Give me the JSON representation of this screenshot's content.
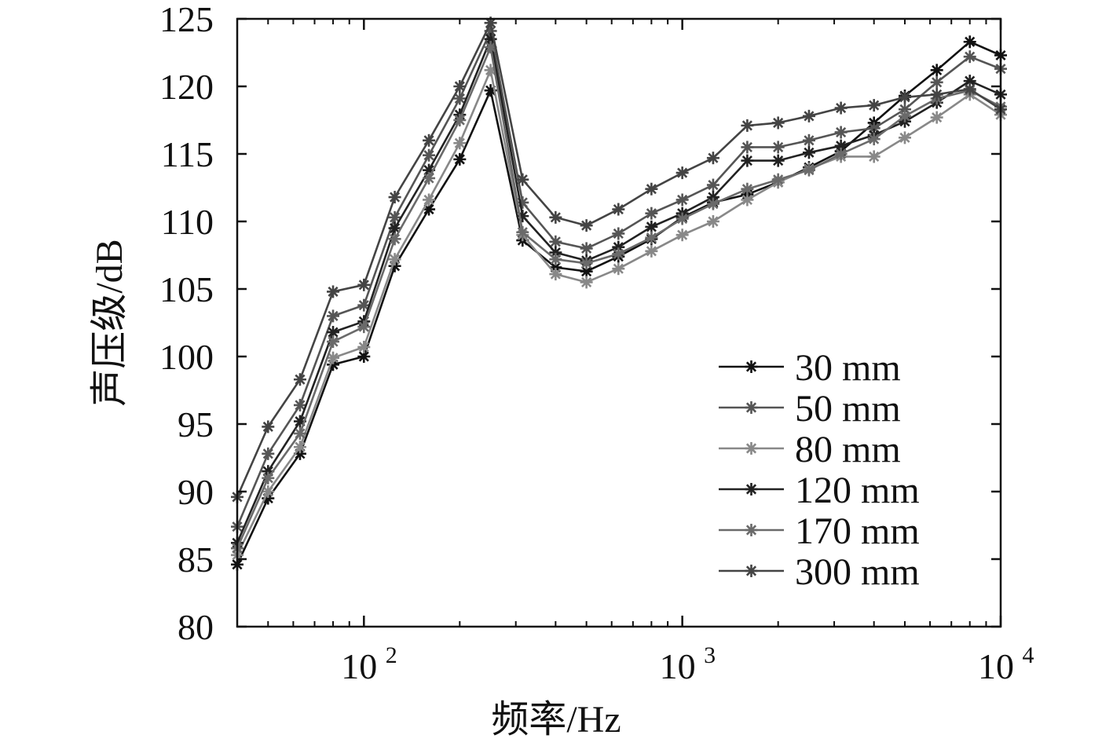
{
  "chart_data": {
    "type": "line",
    "title": "",
    "xlabel": "频率/Hz",
    "ylabel": "声压级/dB",
    "xscale": "log",
    "xlim": [
      40,
      10000
    ],
    "ylim": [
      80,
      125
    ],
    "x_ticks": [
      {
        "value": 100,
        "base": "10",
        "exp": "2"
      },
      {
        "value": 1000,
        "base": "10",
        "exp": "3"
      },
      {
        "value": 10000,
        "base": "10",
        "exp": "4"
      }
    ],
    "y_ticks": [
      80,
      85,
      90,
      95,
      100,
      105,
      110,
      115,
      120,
      125
    ],
    "legend_position": "bottom-right",
    "marker": "asterisk",
    "grid": false,
    "x": [
      40,
      50,
      63,
      80,
      100,
      125,
      160,
      200,
      250,
      315,
      400,
      500,
      630,
      800,
      1000,
      1250,
      1600,
      2000,
      2500,
      3150,
      4000,
      5000,
      6300,
      8000,
      10000
    ],
    "series": [
      {
        "name": "30 mm",
        "color": "#111111",
        "values": [
          84.6,
          89.5,
          92.8,
          99.4,
          100.0,
          106.7,
          110.9,
          114.6,
          119.7,
          108.6,
          106.6,
          106.3,
          107.4,
          108.7,
          110.3,
          111.4,
          112.0,
          112.9,
          114.0,
          115.2,
          117.3,
          119.3,
          121.2,
          123.3,
          122.3
        ]
      },
      {
        "name": "50 mm",
        "color": "#555555",
        "values": [
          87.4,
          92.8,
          96.4,
          103.0,
          103.8,
          110.3,
          114.9,
          119.1,
          124.1,
          111.4,
          108.5,
          108.0,
          109.1,
          110.6,
          111.6,
          112.7,
          115.5,
          115.5,
          116.0,
          116.6,
          116.9,
          118.3,
          120.3,
          122.2,
          121.3
        ]
      },
      {
        "name": "80 mm",
        "color": "#888888",
        "values": [
          85.3,
          90.0,
          93.3,
          99.9,
          100.7,
          107.2,
          111.6,
          115.8,
          121.2,
          109.0,
          106.1,
          105.5,
          106.5,
          107.8,
          109.0,
          110.0,
          111.6,
          112.9,
          113.9,
          114.8,
          114.8,
          116.2,
          117.7,
          119.4,
          117.9
        ]
      },
      {
        "name": "120 mm",
        "color": "#222222",
        "values": [
          86.2,
          91.5,
          95.2,
          101.8,
          102.6,
          109.5,
          113.8,
          117.9,
          123.5,
          110.4,
          107.7,
          107.1,
          108.1,
          109.6,
          110.6,
          111.8,
          114.5,
          114.5,
          115.1,
          115.6,
          116.4,
          117.4,
          118.8,
          120.4,
          119.4
        ]
      },
      {
        "name": "170 mm",
        "color": "#6a6a6a",
        "values": [
          85.8,
          91.0,
          94.3,
          101.1,
          102.2,
          108.7,
          113.2,
          117.5,
          122.9,
          109.2,
          107.2,
          106.9,
          107.6,
          108.8,
          110.2,
          111.3,
          112.4,
          113.1,
          113.8,
          115.0,
          116.1,
          117.8,
          119.1,
          119.7,
          118.5
        ]
      },
      {
        "name": "300 mm",
        "color": "#444444",
        "values": [
          89.6,
          94.8,
          98.3,
          104.8,
          105.3,
          111.8,
          116.0,
          120.0,
          124.7,
          113.1,
          110.3,
          109.7,
          110.9,
          112.4,
          113.6,
          114.7,
          117.1,
          117.3,
          117.8,
          118.4,
          118.6,
          119.2,
          119.4,
          119.8,
          118.3
        ]
      }
    ]
  }
}
